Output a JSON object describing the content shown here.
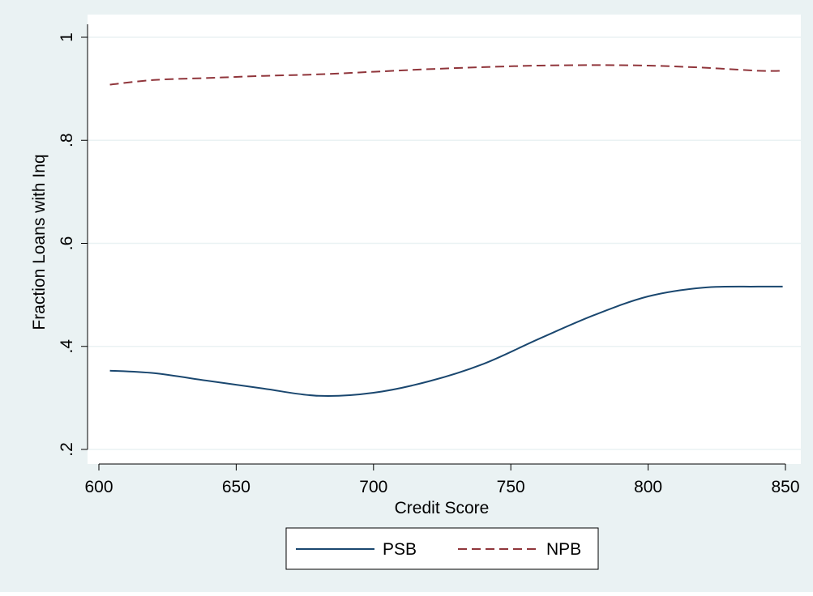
{
  "chart_data": {
    "type": "line",
    "title": "",
    "xlabel": "Credit Score",
    "ylabel": "Fraction Loans with Inq",
    "xlim": [
      600,
      850
    ],
    "ylim": [
      0.2,
      1.0
    ],
    "x_ticks": [
      600,
      650,
      700,
      750,
      800,
      850
    ],
    "x_tick_labels": [
      "600",
      "650",
      "700",
      "750",
      "800",
      "850"
    ],
    "y_ticks": [
      0.2,
      0.4,
      0.6,
      0.8,
      1.0
    ],
    "y_tick_labels": [
      ".2",
      ".4",
      ".6",
      ".8",
      "1"
    ],
    "grid": true,
    "legend_position": "bottom",
    "series": [
      {
        "name": "PSB",
        "color": "#1a476f",
        "line_style": "solid",
        "x": [
          604,
          620,
          640,
          660,
          680,
          700,
          720,
          740,
          760,
          780,
          800,
          820,
          840,
          849
        ],
        "y": [
          0.353,
          0.348,
          0.333,
          0.318,
          0.304,
          0.31,
          0.332,
          0.366,
          0.414,
          0.46,
          0.497,
          0.514,
          0.516,
          0.516
        ]
      },
      {
        "name": "NPB",
        "color": "#90353b",
        "line_style": "dashed",
        "x": [
          604,
          620,
          640,
          660,
          680,
          700,
          720,
          740,
          760,
          780,
          800,
          820,
          840,
          849
        ],
        "y": [
          0.908,
          0.917,
          0.921,
          0.925,
          0.928,
          0.933,
          0.938,
          0.942,
          0.945,
          0.946,
          0.945,
          0.941,
          0.935,
          0.935
        ]
      }
    ]
  },
  "colors": {
    "outer_background": "#eaf2f3",
    "plot_background": "#ffffff",
    "grid": "#eaf2f3"
  }
}
